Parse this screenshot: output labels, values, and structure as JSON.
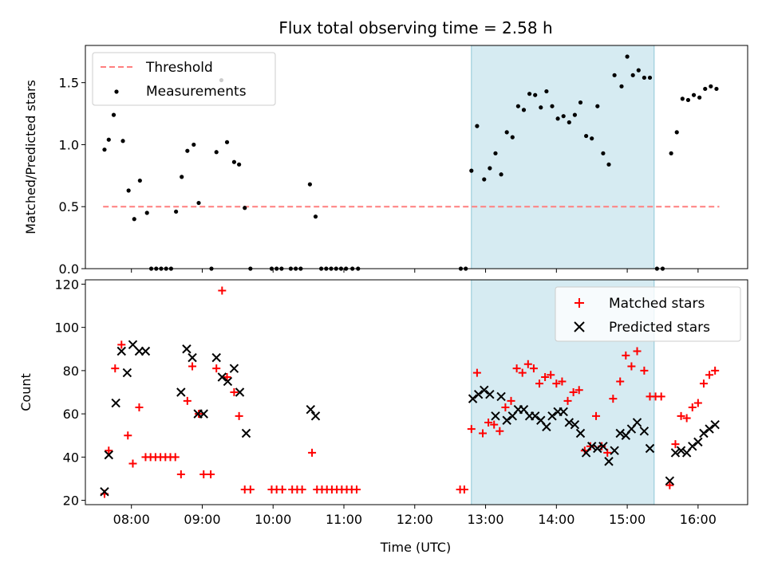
{
  "chart_data": [
    {
      "type": "scatter",
      "title": "Flux total observing time = 2.58 h",
      "xlabel": "",
      "ylabel": "Matched/Predicted stars",
      "xlim": [
        7.35,
        16.7
      ],
      "ylim": [
        0,
        1.8
      ],
      "yticks": [
        0,
        0.5,
        1.0,
        1.5
      ],
      "ytick_labels": [
        "0.0",
        "0.5",
        "1.0",
        "1.5"
      ],
      "xticks": [
        8,
        9,
        10,
        11,
        12,
        13,
        14,
        15,
        16
      ],
      "shaded_region": [
        12.8,
        15.38
      ],
      "threshold": {
        "name": "Threshold",
        "value": 0.5,
        "x": [
          7.6,
          16.3
        ],
        "color": "#ff7f7f"
      },
      "legend": [
        "Threshold",
        "Measurements"
      ],
      "series": [
        {
          "name": "Measurements",
          "color": "#000000",
          "points": [
            [
              7.62,
              0.96
            ],
            [
              7.68,
              1.04
            ],
            [
              7.75,
              1.24
            ],
            [
              7.88,
              1.03
            ],
            [
              7.96,
              0.63
            ],
            [
              8.04,
              0.4
            ],
            [
              8.12,
              0.71
            ],
            [
              8.22,
              0.45
            ],
            [
              8.28,
              0.0
            ],
            [
              8.35,
              0.0
            ],
            [
              8.42,
              0.0
            ],
            [
              8.49,
              0.0
            ],
            [
              8.56,
              0.0
            ],
            [
              8.63,
              0.46
            ],
            [
              8.71,
              0.74
            ],
            [
              8.79,
              0.95
            ],
            [
              8.88,
              1.0
            ],
            [
              8.95,
              0.53
            ],
            [
              9.13,
              0.0
            ],
            [
              9.2,
              0.94
            ],
            [
              9.27,
              1.52
            ],
            [
              9.35,
              1.02
            ],
            [
              9.45,
              0.86
            ],
            [
              9.52,
              0.84
            ],
            [
              9.6,
              0.49
            ],
            [
              9.68,
              0.0
            ],
            [
              9.98,
              0.0
            ],
            [
              10.05,
              0.0
            ],
            [
              10.12,
              0.0
            ],
            [
              10.25,
              0.0
            ],
            [
              10.32,
              0.0
            ],
            [
              10.39,
              0.0
            ],
            [
              10.52,
              0.68
            ],
            [
              10.6,
              0.42
            ],
            [
              10.68,
              0.0
            ],
            [
              10.75,
              0.0
            ],
            [
              10.82,
              0.0
            ],
            [
              10.89,
              0.0
            ],
            [
              10.96,
              0.0
            ],
            [
              11.03,
              0.0
            ],
            [
              11.12,
              0.0
            ],
            [
              11.2,
              0.0
            ],
            [
              12.65,
              0.0
            ],
            [
              12.72,
              0.0
            ],
            [
              12.8,
              0.79
            ],
            [
              12.88,
              1.15
            ],
            [
              12.98,
              0.72
            ],
            [
              13.06,
              0.81
            ],
            [
              13.14,
              0.93
            ],
            [
              13.22,
              0.76
            ],
            [
              13.3,
              1.1
            ],
            [
              13.38,
              1.06
            ],
            [
              13.46,
              1.31
            ],
            [
              13.54,
              1.28
            ],
            [
              13.62,
              1.41
            ],
            [
              13.7,
              1.4
            ],
            [
              13.78,
              1.3
            ],
            [
              13.86,
              1.43
            ],
            [
              13.94,
              1.31
            ],
            [
              14.02,
              1.21
            ],
            [
              14.1,
              1.23
            ],
            [
              14.18,
              1.18
            ],
            [
              14.26,
              1.24
            ],
            [
              14.34,
              1.34
            ],
            [
              14.42,
              1.07
            ],
            [
              14.5,
              1.05
            ],
            [
              14.58,
              1.31
            ],
            [
              14.66,
              0.93
            ],
            [
              14.74,
              0.84
            ],
            [
              14.82,
              1.56
            ],
            [
              14.92,
              1.47
            ],
            [
              15.0,
              1.71
            ],
            [
              15.08,
              1.56
            ],
            [
              15.16,
              1.6
            ],
            [
              15.24,
              1.54
            ],
            [
              15.32,
              1.54
            ],
            [
              15.42,
              0.0
            ],
            [
              15.5,
              0.0
            ],
            [
              15.62,
              0.93
            ],
            [
              15.7,
              1.1
            ],
            [
              15.78,
              1.37
            ],
            [
              15.86,
              1.36
            ],
            [
              15.94,
              1.4
            ],
            [
              16.02,
              1.38
            ],
            [
              16.1,
              1.45
            ],
            [
              16.18,
              1.47
            ],
            [
              16.26,
              1.45
            ]
          ]
        }
      ]
    },
    {
      "type": "scatter",
      "title": "",
      "xlabel": "Time (UTC)",
      "ylabel": "Count",
      "xlim": [
        7.35,
        16.7
      ],
      "ylim": [
        18,
        122
      ],
      "yticks": [
        20,
        40,
        60,
        80,
        100,
        120
      ],
      "ytick_labels": [
        "20",
        "40",
        "60",
        "80",
        "100",
        "120"
      ],
      "xticks": [
        8,
        9,
        10,
        11,
        12,
        13,
        14,
        15,
        16
      ],
      "xtick_labels": [
        "08:00",
        "09:00",
        "10:00",
        "11:00",
        "12:00",
        "13:00",
        "14:00",
        "15:00",
        "16:00"
      ],
      "shaded_region": [
        12.8,
        15.38
      ],
      "legend": [
        "Matched stars",
        "Predicted stars"
      ],
      "series": [
        {
          "name": "Matched stars",
          "marker": "plus",
          "color": "#ff0000",
          "points": [
            [
              7.62,
              23
            ],
            [
              7.68,
              43
            ],
            [
              7.77,
              81
            ],
            [
              7.86,
              92
            ],
            [
              7.95,
              50
            ],
            [
              8.02,
              37
            ],
            [
              8.11,
              63
            ],
            [
              8.2,
              40
            ],
            [
              8.27,
              40
            ],
            [
              8.34,
              40
            ],
            [
              8.41,
              40
            ],
            [
              8.48,
              40
            ],
            [
              8.55,
              40
            ],
            [
              8.62,
              40
            ],
            [
              8.7,
              32
            ],
            [
              8.79,
              66
            ],
            [
              8.86,
              82
            ],
            [
              8.95,
              60
            ],
            [
              9.02,
              32
            ],
            [
              9.12,
              32
            ],
            [
              9.2,
              81
            ],
            [
              9.28,
              117
            ],
            [
              9.35,
              77
            ],
            [
              9.45,
              70
            ],
            [
              9.52,
              59
            ],
            [
              9.6,
              25
            ],
            [
              9.68,
              25
            ],
            [
              9.98,
              25
            ],
            [
              10.05,
              25
            ],
            [
              10.13,
              25
            ],
            [
              10.27,
              25
            ],
            [
              10.34,
              25
            ],
            [
              10.41,
              25
            ],
            [
              10.55,
              42
            ],
            [
              10.62,
              25
            ],
            [
              10.69,
              25
            ],
            [
              10.76,
              25
            ],
            [
              10.83,
              25
            ],
            [
              10.9,
              25
            ],
            [
              10.97,
              25
            ],
            [
              11.04,
              25
            ],
            [
              11.11,
              25
            ],
            [
              11.18,
              25
            ],
            [
              12.64,
              25
            ],
            [
              12.7,
              25
            ],
            [
              12.8,
              53
            ],
            [
              12.88,
              79
            ],
            [
              12.96,
              51
            ],
            [
              13.04,
              56
            ],
            [
              13.12,
              55
            ],
            [
              13.2,
              52
            ],
            [
              13.28,
              63
            ],
            [
              13.36,
              66
            ],
            [
              13.44,
              81
            ],
            [
              13.52,
              79
            ],
            [
              13.6,
              83
            ],
            [
              13.68,
              81
            ],
            [
              13.76,
              74
            ],
            [
              13.84,
              77
            ],
            [
              13.92,
              78
            ],
            [
              14.0,
              74
            ],
            [
              14.08,
              75
            ],
            [
              14.16,
              66
            ],
            [
              14.24,
              70
            ],
            [
              14.32,
              71
            ],
            [
              14.4,
              43
            ],
            [
              14.48,
              45
            ],
            [
              14.56,
              59
            ],
            [
              14.64,
              45
            ],
            [
              14.72,
              42
            ],
            [
              14.8,
              67
            ],
            [
              14.9,
              75
            ],
            [
              14.98,
              87
            ],
            [
              15.06,
              82
            ],
            [
              15.14,
              89
            ],
            [
              15.24,
              80
            ],
            [
              15.32,
              68
            ],
            [
              15.4,
              68
            ],
            [
              15.48,
              68
            ],
            [
              15.6,
              27
            ],
            [
              15.68,
              46
            ],
            [
              15.76,
              59
            ],
            [
              15.84,
              58
            ],
            [
              15.92,
              63
            ],
            [
              16.0,
              65
            ],
            [
              16.08,
              74
            ],
            [
              16.16,
              78
            ],
            [
              16.24,
              80
            ]
          ]
        },
        {
          "name": "Predicted stars",
          "marker": "x",
          "color": "#000000",
          "points": [
            [
              7.62,
              24
            ],
            [
              7.68,
              41
            ],
            [
              7.78,
              65
            ],
            [
              7.86,
              89
            ],
            [
              7.94,
              79
            ],
            [
              8.02,
              92
            ],
            [
              8.11,
              89
            ],
            [
              8.2,
              89
            ],
            [
              8.7,
              70
            ],
            [
              8.78,
              90
            ],
            [
              8.86,
              86
            ],
            [
              8.94,
              60
            ],
            [
              9.02,
              60
            ],
            [
              9.2,
              86
            ],
            [
              9.28,
              77
            ],
            [
              9.36,
              75
            ],
            [
              9.45,
              81
            ],
            [
              9.53,
              70
            ],
            [
              9.62,
              51
            ],
            [
              10.53,
              62
            ],
            [
              10.6,
              59
            ],
            [
              12.82,
              67
            ],
            [
              12.9,
              69
            ],
            [
              12.98,
              71
            ],
            [
              13.06,
              69
            ],
            [
              13.14,
              59
            ],
            [
              13.22,
              68
            ],
            [
              13.3,
              57
            ],
            [
              13.38,
              59
            ],
            [
              13.46,
              62
            ],
            [
              13.54,
              62
            ],
            [
              13.62,
              59
            ],
            [
              13.7,
              59
            ],
            [
              13.78,
              57
            ],
            [
              13.86,
              54
            ],
            [
              13.94,
              59
            ],
            [
              14.02,
              61
            ],
            [
              14.1,
              61
            ],
            [
              14.18,
              56
            ],
            [
              14.26,
              55
            ],
            [
              14.34,
              51
            ],
            [
              14.42,
              42
            ],
            [
              14.5,
              45
            ],
            [
              14.58,
              44
            ],
            [
              14.66,
              45
            ],
            [
              14.74,
              38
            ],
            [
              14.82,
              43
            ],
            [
              14.9,
              51
            ],
            [
              14.98,
              50
            ],
            [
              15.06,
              53
            ],
            [
              15.14,
              56
            ],
            [
              15.24,
              52
            ],
            [
              15.32,
              44
            ],
            [
              15.6,
              29
            ],
            [
              15.68,
              42
            ],
            [
              15.76,
              43
            ],
            [
              15.84,
              42
            ],
            [
              15.92,
              45
            ],
            [
              16.0,
              47
            ],
            [
              16.08,
              51
            ],
            [
              16.16,
              53
            ],
            [
              16.24,
              55
            ]
          ]
        }
      ]
    }
  ]
}
